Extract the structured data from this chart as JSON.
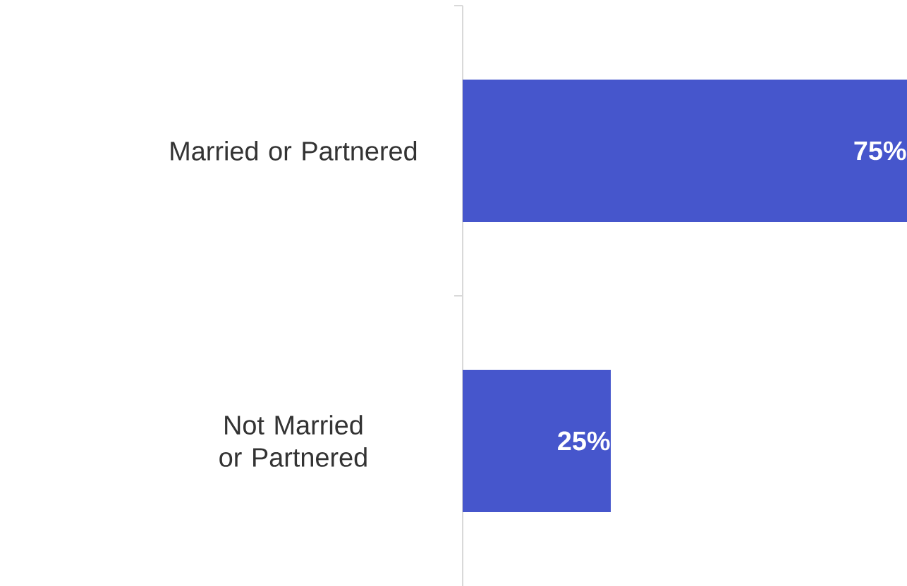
{
  "chart_data": {
    "type": "bar",
    "orientation": "horizontal",
    "categories": [
      "Married or Partnered",
      "Not Married or Partnered"
    ],
    "values": [
      75,
      25
    ],
    "color": "#4656cc",
    "value_labels": [
      "75%",
      "25%"
    ]
  }
}
